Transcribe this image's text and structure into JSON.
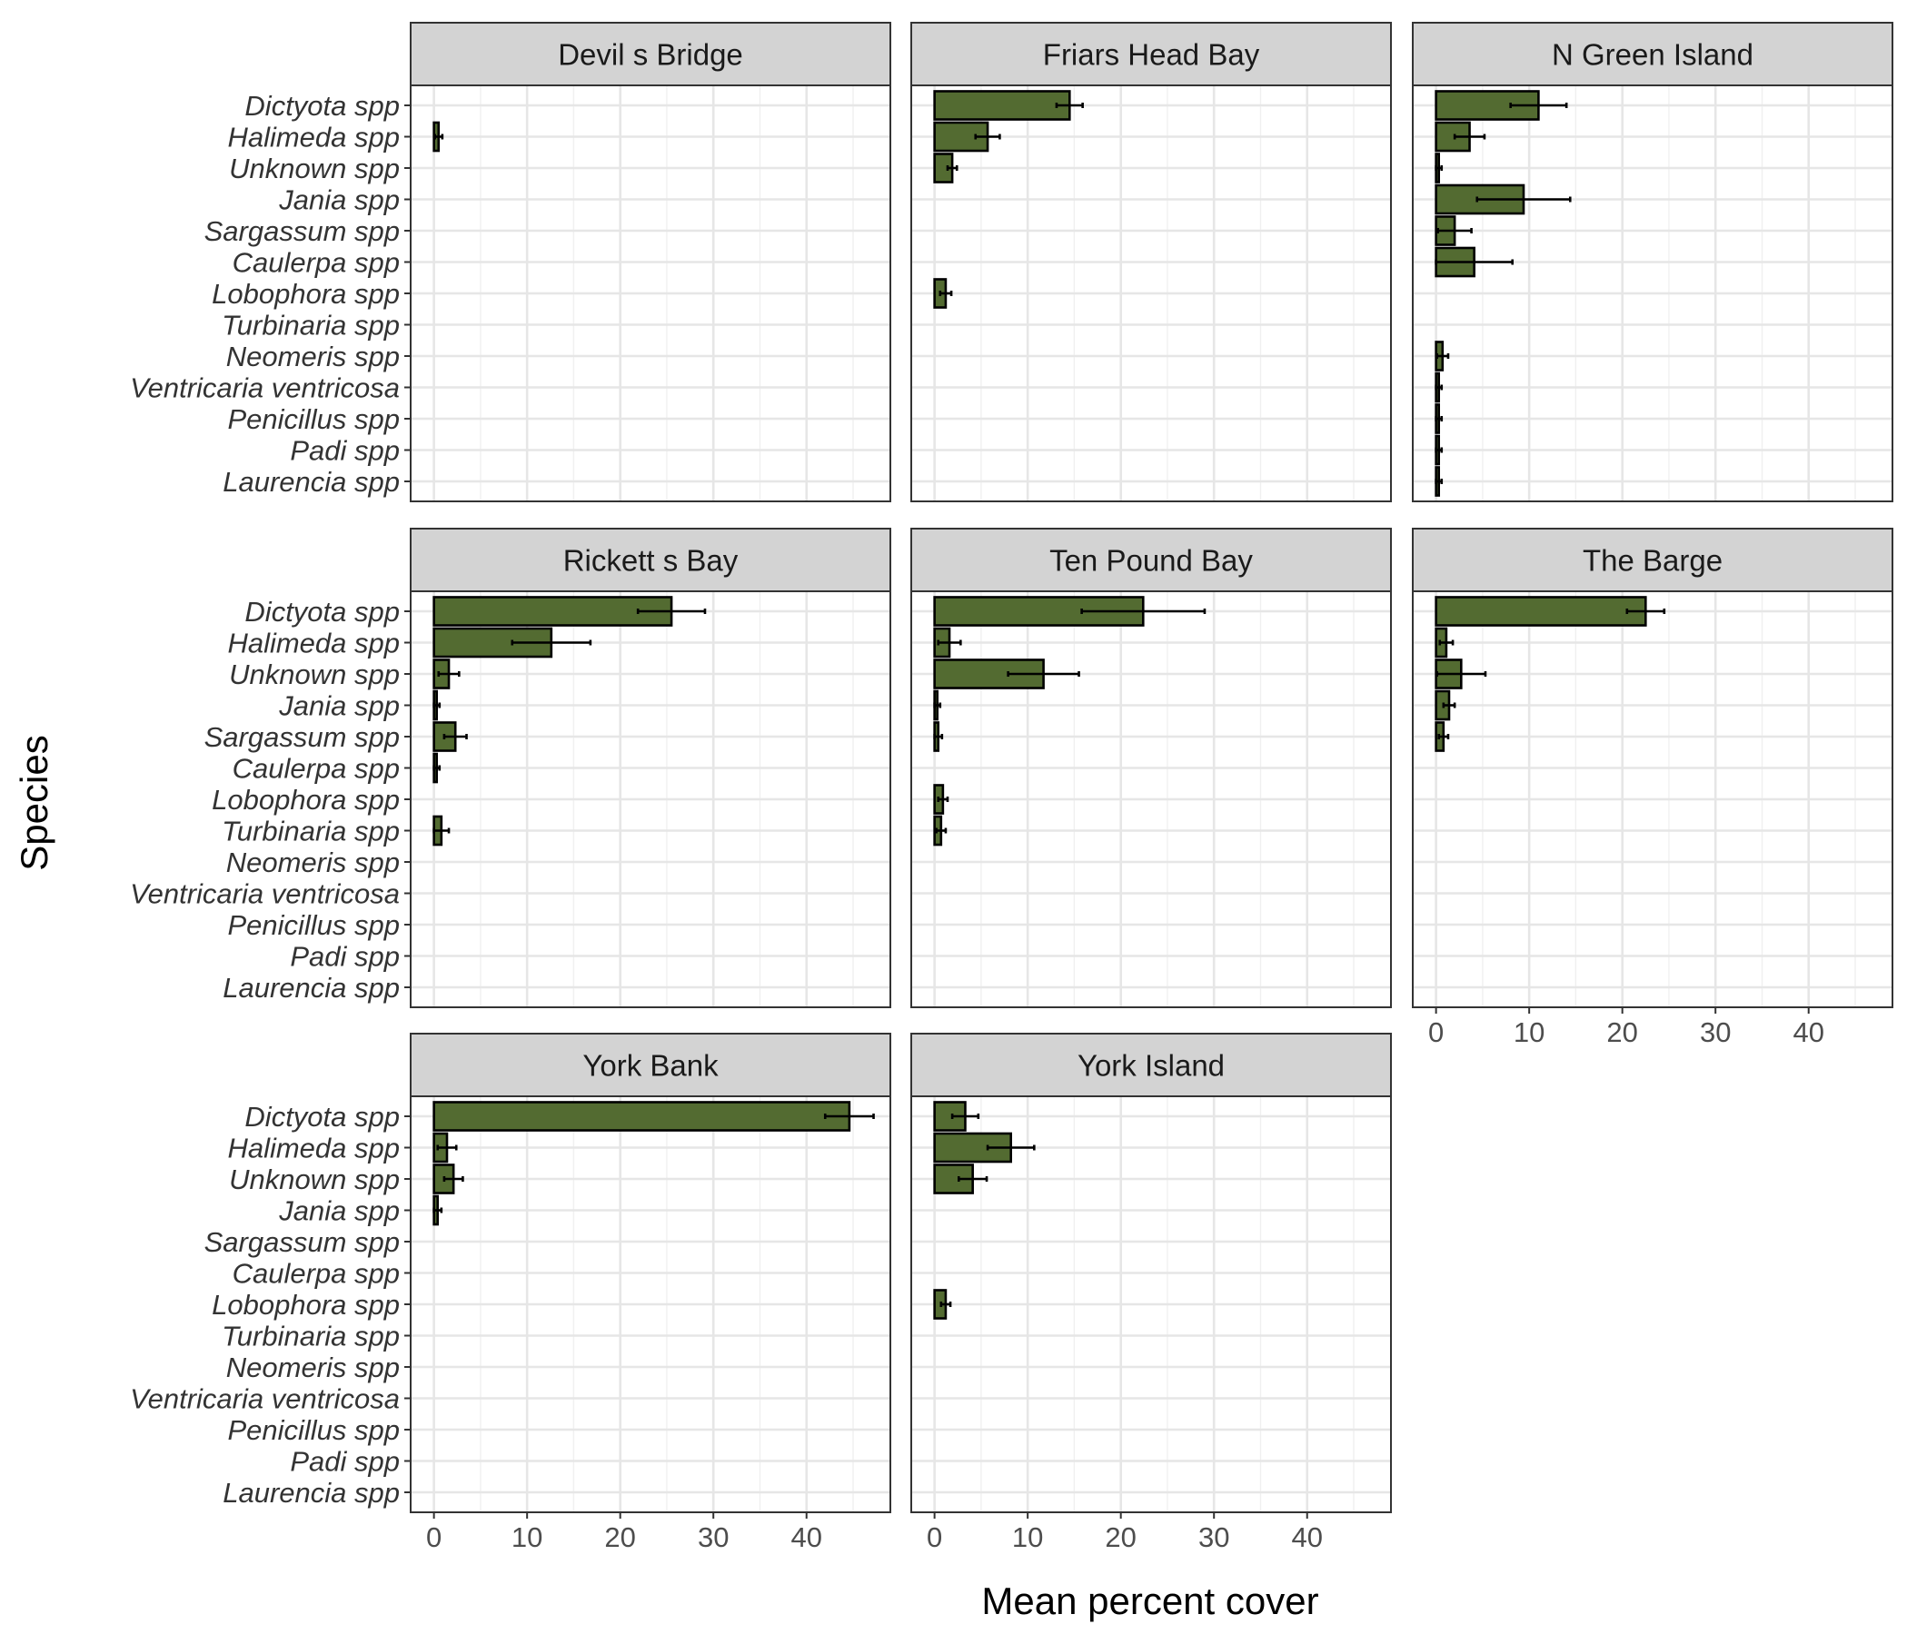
{
  "chart_data": {
    "type": "bar",
    "orientation": "horizontal",
    "facet_layout": "3x3 grid",
    "xlabel": "Mean percent cover",
    "ylabel": "Species",
    "xlim": [
      -2.5,
      49
    ],
    "x_ticks": [
      0,
      10,
      20,
      30,
      40
    ],
    "grid": true,
    "bar_color": "#536b31",
    "categories": [
      "Dictyota spp",
      "Halimeda spp",
      "Unknown spp",
      "Jania spp",
      "Sargassum spp",
      "Caulerpa spp",
      "Lobophora spp",
      "Turbinaria spp",
      "Neomeris spp",
      "Ventricaria ventricosa",
      "Penicillus spp",
      "Padi spp",
      "Laurencia spp"
    ],
    "panels": [
      {
        "site": "Devil s Bridge",
        "values": [
          0,
          0.5,
          0,
          0,
          0,
          0,
          0,
          0,
          0,
          0,
          0,
          0,
          0
        ],
        "errors": [
          0,
          0.4,
          0,
          0,
          0,
          0,
          0,
          0,
          0,
          0,
          0,
          0,
          0
        ]
      },
      {
        "site": "Friars Head Bay",
        "values": [
          14.5,
          5.7,
          1.9,
          0,
          0,
          0,
          1.2,
          0,
          0,
          0,
          0,
          0,
          0
        ],
        "errors": [
          1.4,
          1.3,
          0.5,
          0,
          0,
          0,
          0.6,
          0,
          0,
          0,
          0,
          0,
          0
        ]
      },
      {
        "site": "N Green Island",
        "values": [
          11.0,
          3.6,
          0.3,
          9.4,
          2.0,
          4.1,
          0,
          0,
          0.7,
          0.3,
          0.3,
          0.3,
          0.3
        ],
        "errors": [
          3.0,
          1.6,
          0.3,
          5.0,
          1.8,
          4.1,
          0,
          0,
          0.6,
          0.3,
          0.3,
          0.3,
          0.3
        ]
      },
      {
        "site": "Rickett s Bay",
        "values": [
          25.5,
          12.6,
          1.6,
          0.3,
          2.3,
          0.3,
          0,
          0.8,
          0,
          0,
          0,
          0,
          0
        ],
        "errors": [
          3.6,
          4.2,
          1.1,
          0.3,
          1.2,
          0.3,
          0,
          0.8,
          0,
          0,
          0,
          0,
          0
        ]
      },
      {
        "site": "Ten Pound Bay",
        "values": [
          22.4,
          1.6,
          11.7,
          0.3,
          0.4,
          0,
          0.9,
          0.7,
          0,
          0,
          0,
          0,
          0
        ],
        "errors": [
          6.6,
          1.2,
          3.8,
          0.3,
          0.4,
          0,
          0.5,
          0.5,
          0,
          0,
          0,
          0,
          0
        ]
      },
      {
        "site": "The Barge",
        "values": [
          22.5,
          1.1,
          2.7,
          1.4,
          0.8,
          0,
          0,
          0,
          0,
          0,
          0,
          0,
          0
        ],
        "errors": [
          2.0,
          0.7,
          2.6,
          0.6,
          0.5,
          0,
          0,
          0,
          0,
          0,
          0,
          0,
          0
        ]
      },
      {
        "site": "York Bank",
        "values": [
          44.6,
          1.4,
          2.1,
          0.4,
          0,
          0,
          0,
          0,
          0,
          0,
          0,
          0,
          0
        ],
        "errors": [
          2.6,
          1.0,
          1.0,
          0.4,
          0,
          0,
          0,
          0,
          0,
          0,
          0,
          0,
          0
        ]
      },
      {
        "site": "York Island",
        "values": [
          3.3,
          8.2,
          4.1,
          0,
          0,
          0,
          1.2,
          0,
          0,
          0,
          0,
          0,
          0
        ],
        "errors": [
          1.4,
          2.5,
          1.5,
          0,
          0,
          0,
          0.5,
          0,
          0,
          0,
          0,
          0,
          0
        ]
      }
    ]
  }
}
